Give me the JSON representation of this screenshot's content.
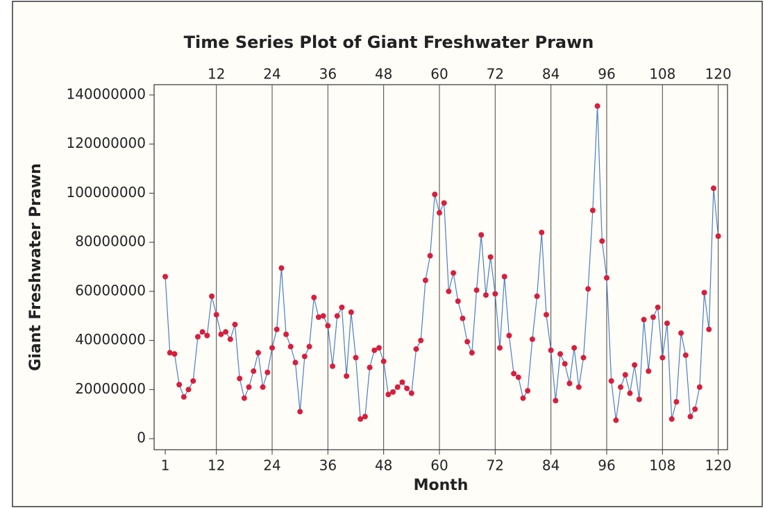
{
  "chart_data": {
    "type": "line",
    "title": "Time Series Plot of Giant Freshwater Prawn",
    "xlabel": "Month",
    "ylabel": "Giant Freshwater Prawn",
    "x": [
      1,
      2,
      3,
      4,
      5,
      6,
      7,
      8,
      9,
      10,
      11,
      12,
      13,
      14,
      15,
      16,
      17,
      18,
      19,
      20,
      21,
      22,
      23,
      24,
      25,
      26,
      27,
      28,
      29,
      30,
      31,
      32,
      33,
      34,
      35,
      36,
      37,
      38,
      39,
      40,
      41,
      42,
      43,
      44,
      45,
      46,
      47,
      48,
      49,
      50,
      51,
      52,
      53,
      54,
      55,
      56,
      57,
      58,
      59,
      60,
      61,
      62,
      63,
      64,
      65,
      66,
      67,
      68,
      69,
      70,
      71,
      72,
      73,
      74,
      75,
      76,
      77,
      78,
      79,
      80,
      81,
      82,
      83,
      84,
      85,
      86,
      87,
      88,
      89,
      90,
      91,
      92,
      93,
      94,
      95,
      96,
      97,
      98,
      99,
      100,
      101,
      102,
      103,
      104,
      105,
      106,
      107,
      108,
      109,
      110,
      111,
      112,
      113,
      114,
      115,
      116,
      117,
      118,
      119,
      120
    ],
    "series": [
      {
        "name": "Giant Freshwater Prawn",
        "color": "#4a7fc4",
        "marker_color": "#d81e3c",
        "values": [
          66000000,
          35000000,
          34500000,
          22000000,
          17000000,
          20000000,
          23500000,
          41500000,
          43500000,
          42000000,
          58000000,
          50500000,
          42500000,
          43500000,
          40500000,
          46500000,
          24500000,
          16500000,
          21000000,
          27500000,
          35000000,
          21000000,
          27000000,
          37000000,
          44500000,
          69500000,
          42500000,
          37500000,
          31000000,
          11000000,
          33500000,
          37500000,
          57500000,
          49500000,
          50000000,
          46000000,
          29500000,
          50000000,
          53500000,
          25500000,
          51500000,
          33000000,
          8000000,
          9000000,
          29000000,
          36000000,
          37000000,
          31500000,
          18000000,
          19000000,
          21000000,
          23000000,
          20500000,
          18500000,
          36500000,
          40000000,
          64500000,
          74500000,
          99500000,
          92000000,
          96000000,
          60000000,
          67500000,
          56000000,
          49000000,
          39500000,
          35000000,
          60500000,
          83000000,
          58500000,
          74000000,
          59000000,
          37000000,
          66000000,
          42000000,
          26500000,
          25000000,
          16500000,
          19500000,
          40500000,
          58000000,
          84000000,
          50500000,
          36000000,
          15500000,
          34500000,
          30500000,
          22500000,
          37000000,
          21000000,
          33000000,
          61000000,
          93000000,
          135500000,
          80500000,
          65500000,
          23500000,
          7500000,
          21000000,
          26000000,
          18500000,
          30000000,
          16000000,
          48500000,
          27500000,
          49500000,
          53500000,
          33000000,
          47000000,
          8000000,
          15000000,
          43000000,
          34000000,
          9000000,
          12000000,
          21000000,
          59500000,
          44500000,
          102000000,
          82500000
        ]
      }
    ],
    "xlim": [
      -1.4,
      122
    ],
    "xticks": [
      1,
      12,
      24,
      36,
      48,
      60,
      72,
      84,
      96,
      108,
      120
    ],
    "top_ticks": [
      12,
      24,
      36,
      48,
      60,
      72,
      84,
      96,
      108,
      120
    ],
    "ylim": [
      -4500000,
      144200000
    ],
    "yticks": [
      0,
      20000000,
      40000000,
      60000000,
      80000000,
      100000000,
      120000000,
      140000000
    ]
  }
}
